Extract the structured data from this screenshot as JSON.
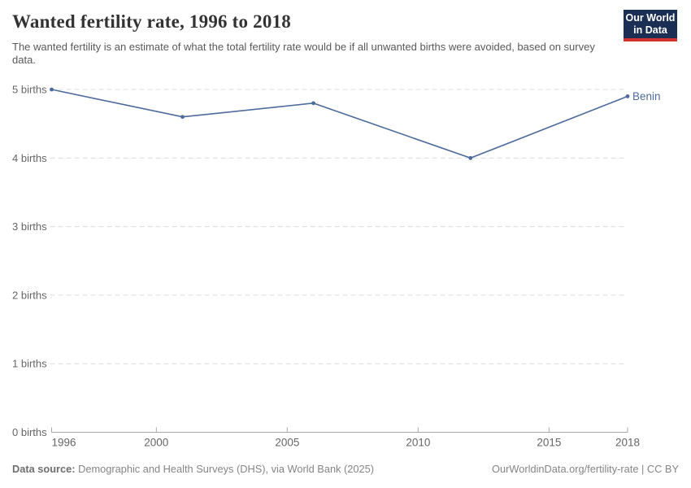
{
  "header": {
    "title": "Wanted fertility rate, 1996 to 2018",
    "subtitle": "The wanted fertility is an estimate of what the total fertility rate would be if all unwanted births were avoided, based on survey data.",
    "logo": {
      "line1": "Our World",
      "line2": "in Data"
    }
  },
  "chart_data": {
    "type": "line",
    "title": "Wanted fertility rate, 1996 to 2018",
    "xlabel": "",
    "ylabel": "",
    "xlim": [
      1996,
      2018
    ],
    "ylim": [
      0,
      5
    ],
    "x_ticks": [
      1996,
      2000,
      2005,
      2010,
      2015,
      2018
    ],
    "y_ticks": [
      0,
      1,
      2,
      3,
      4,
      5
    ],
    "y_tick_suffix": " births",
    "grid": "horizontal-dashed",
    "legend_position": "end-of-line-label",
    "series": [
      {
        "name": "Benin",
        "color": "#4C6A9C",
        "points": [
          {
            "year": 1996,
            "value": 5.0
          },
          {
            "year": 2001,
            "value": 4.6
          },
          {
            "year": 2006,
            "value": 4.8
          },
          {
            "year": 2012,
            "value": 4.0
          },
          {
            "year": 2018,
            "value": 4.9
          }
        ]
      }
    ]
  },
  "footer": {
    "source_label": "Data source:",
    "source_text": " Demographic and Health Surveys (DHS), via World Bank (2025)",
    "right_text": "OurWorldinData.org/fertility-rate | CC BY"
  },
  "colors": {
    "line": "#4C6A9C",
    "grid": "#dcdcdc",
    "axis": "#a8a8a8",
    "tick_label": "#666666",
    "logo_bg": "#1b2f55",
    "logo_accent": "#d1322e"
  }
}
